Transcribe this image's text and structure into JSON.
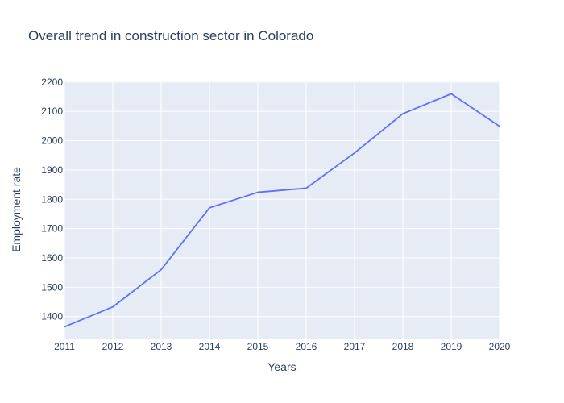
{
  "chart_data": {
    "type": "line",
    "title": "Overall trend in construction sector in Colorado",
    "xlabel": "Years",
    "ylabel": "Employment rate",
    "x": [
      2011,
      2012,
      2013,
      2014,
      2015,
      2016,
      2017,
      2018,
      2019,
      2020
    ],
    "series": [
      {
        "values": [
          1365,
          1433,
          1560,
          1771,
          1824,
          1838,
          1958,
          2092,
          2160,
          2049
        ]
      }
    ],
    "xlim": [
      2011,
      2020
    ],
    "ylim": [
      1325,
      2205
    ],
    "xticks": [
      2011,
      2012,
      2013,
      2014,
      2015,
      2016,
      2017,
      2018,
      2019,
      2020
    ],
    "yticks": [
      1400,
      1500,
      1600,
      1700,
      1800,
      1900,
      2000,
      2100,
      2200
    ],
    "grid": true,
    "colors": {
      "plot_background": "#e5ecf6",
      "line": "#636efa",
      "text": "#2a3f5f",
      "grid": "#ffffff"
    }
  }
}
